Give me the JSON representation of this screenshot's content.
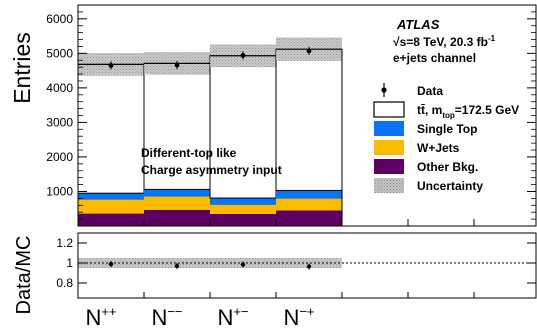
{
  "chart_data": [
    {
      "type": "bar",
      "stacked": true,
      "ylabel": "Entries",
      "ylim": [
        0,
        6400
      ],
      "categories": [
        "N++",
        "N−−",
        "N+−",
        "N−+"
      ],
      "yticks": [
        1000,
        2000,
        3000,
        4000,
        5000,
        6000
      ],
      "series": [
        {
          "name": "Other Bkg.",
          "color": "#5e0062",
          "values": [
            360,
            470,
            350,
            450
          ]
        },
        {
          "name": "W+Jets",
          "color": "#fdbb00",
          "values": [
            400,
            380,
            260,
            340
          ]
        },
        {
          "name": "Single Top",
          "color": "#0a74f3",
          "values": [
            190,
            210,
            200,
            240
          ]
        },
        {
          "name": "tt̄, m_top=172.5 GeV",
          "color": "#ffffff",
          "values": [
            3730,
            3650,
            4120,
            4090
          ]
        }
      ],
      "mc_total": [
        4680,
        4710,
        4930,
        5120
      ],
      "uncertainty": [
        330,
        330,
        330,
        340
      ],
      "data": {
        "name": "Data",
        "values": [
          4650,
          4660,
          4940,
          5070
        ]
      },
      "legend": {
        "position": "right",
        "entries": [
          {
            "label": "Data",
            "kind": "point"
          },
          {
            "label_main": "tt̄, m",
            "label_sub": "top",
            "label_tail": "=172.5 GeV",
            "kind": "hollow"
          },
          {
            "label": "Single Top",
            "kind": "fill",
            "color": "#0a74f3"
          },
          {
            "label": "W+Jets",
            "kind": "fill",
            "color": "#fdbb00"
          },
          {
            "label": "Other Bkg.",
            "kind": "fill",
            "color": "#5e0062"
          },
          {
            "label": "Uncertainty",
            "kind": "hatch"
          }
        ]
      },
      "annotations": {
        "experiment": "ATLAS",
        "energy_prefix": "√s=8 TeV, 20.3 fb",
        "energy_sup": "-1",
        "channel": "e+jets channel",
        "inset_line1": "Different-top like",
        "inset_line2": "Charge asymmetry input"
      }
    },
    {
      "type": "scatter",
      "ylabel": "Data/MC",
      "ylim": [
        0.65,
        1.3
      ],
      "yticks": [
        0.8,
        1,
        1.2
      ],
      "categories": [
        "N++",
        "N−−",
        "N+−",
        "N−+"
      ],
      "values": [
        0.99,
        0.97,
        0.985,
        0.965
      ],
      "uncertainty": [
        0.05,
        0.05,
        0.05,
        0.05
      ],
      "reference_line": 1
    }
  ],
  "xlabels": [
    {
      "base": "N",
      "sup": "++"
    },
    {
      "base": "N",
      "sup": "−−"
    },
    {
      "base": "N",
      "sup": "+−"
    },
    {
      "base": "N",
      "sup": "−+"
    }
  ]
}
